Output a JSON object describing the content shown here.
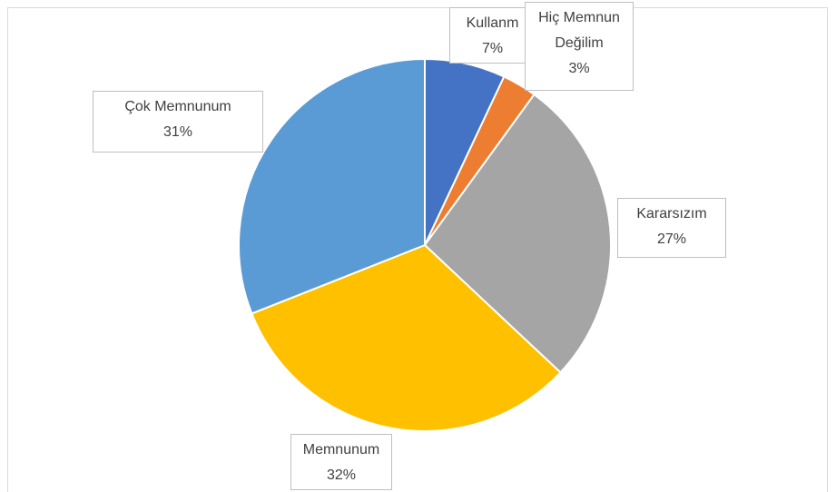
{
  "chart_data": {
    "type": "pie",
    "categories": [
      "Kullanm",
      "Hiç Memnun Değilim",
      "Kararsızım",
      "Memnunum",
      "Çok Memnunum"
    ],
    "values": [
      7,
      3,
      27,
      32,
      31
    ],
    "value_labels": [
      "7%",
      "3%",
      "27%",
      "32%",
      "31%"
    ],
    "colors": [
      "#4472c4",
      "#ed7d31",
      "#a5a5a5",
      "#ffc000",
      "#5b9bd5"
    ]
  }
}
